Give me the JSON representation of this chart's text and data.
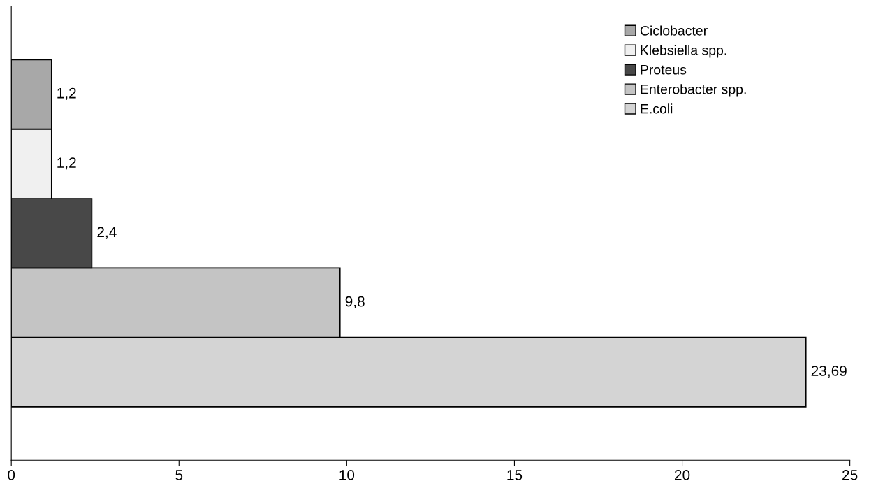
{
  "chart_data": {
    "type": "bar",
    "orientation": "horizontal",
    "categories": [
      null
    ],
    "series": [
      {
        "name": "E.coli",
        "color": "#d4d4d4",
        "values": [
          23.69
        ],
        "value_labels": [
          "23,69"
        ]
      },
      {
        "name": "Enterobacter spp.",
        "color": "#c4c4c4",
        "values": [
          9.8
        ],
        "value_labels": [
          "9,8"
        ]
      },
      {
        "name": "Proteus",
        "color": "#484848",
        "values": [
          2.4
        ],
        "value_labels": [
          "2,4"
        ]
      },
      {
        "name": "Klebsiella spp.",
        "color": "#f0f0f0",
        "values": [
          1.2
        ],
        "value_labels": [
          "1,2"
        ]
      },
      {
        "name": "Ciclobacter",
        "color": "#a8a8a8",
        "values": [
          1.2
        ],
        "value_labels": [
          "1,2"
        ]
      }
    ],
    "xlim": [
      0,
      25
    ],
    "xticks": [
      0,
      5,
      10,
      15,
      20,
      25
    ],
    "grid": false,
    "legend": "top right",
    "tick_labels": "x"
  }
}
